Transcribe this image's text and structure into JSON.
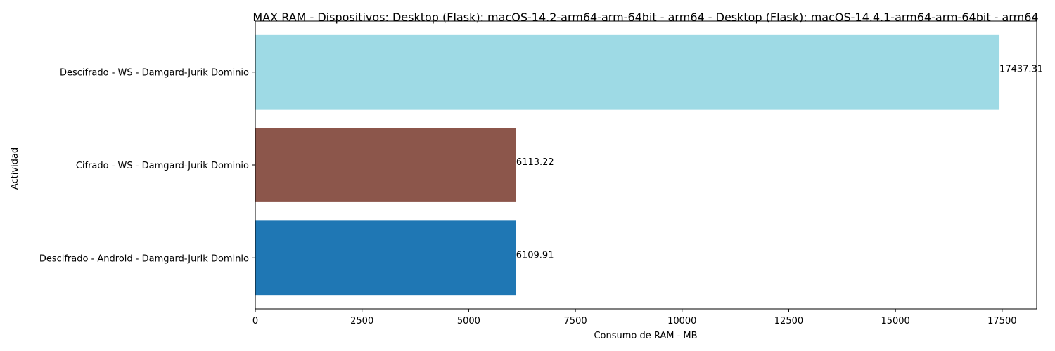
{
  "chart_data": {
    "type": "bar",
    "orientation": "horizontal",
    "title": "MAX RAM - Dispositivos: Desktop (Flask): macOS-14.2-arm64-arm-64bit - arm64 - Desktop (Flask): macOS-14.4.1-arm64-arm-64bit - arm64",
    "xlabel": "Consumo de RAM - MB",
    "ylabel": "Actividad",
    "categories": [
      "Descifrado - Android - Damgard-Jurik Dominio",
      "Cifrado - WS - Damgard-Jurik Dominio",
      "Descifrado - WS - Damgard-Jurik Dominio"
    ],
    "values": [
      6109.91,
      6113.22,
      17437.31
    ],
    "value_labels": [
      "6109.91",
      "6113.22",
      "17437.31"
    ],
    "colors": [
      "#1f77b4",
      "#8c564b",
      "#9edae5"
    ],
    "xlim": [
      0,
      18310
    ],
    "xticks": [
      0,
      2500,
      5000,
      7500,
      10000,
      12500,
      15000,
      17500
    ],
    "xtick_labels": [
      "0",
      "2500",
      "5000",
      "7500",
      "10000",
      "12500",
      "15000",
      "17500"
    ],
    "grid": false,
    "legend": "none"
  }
}
